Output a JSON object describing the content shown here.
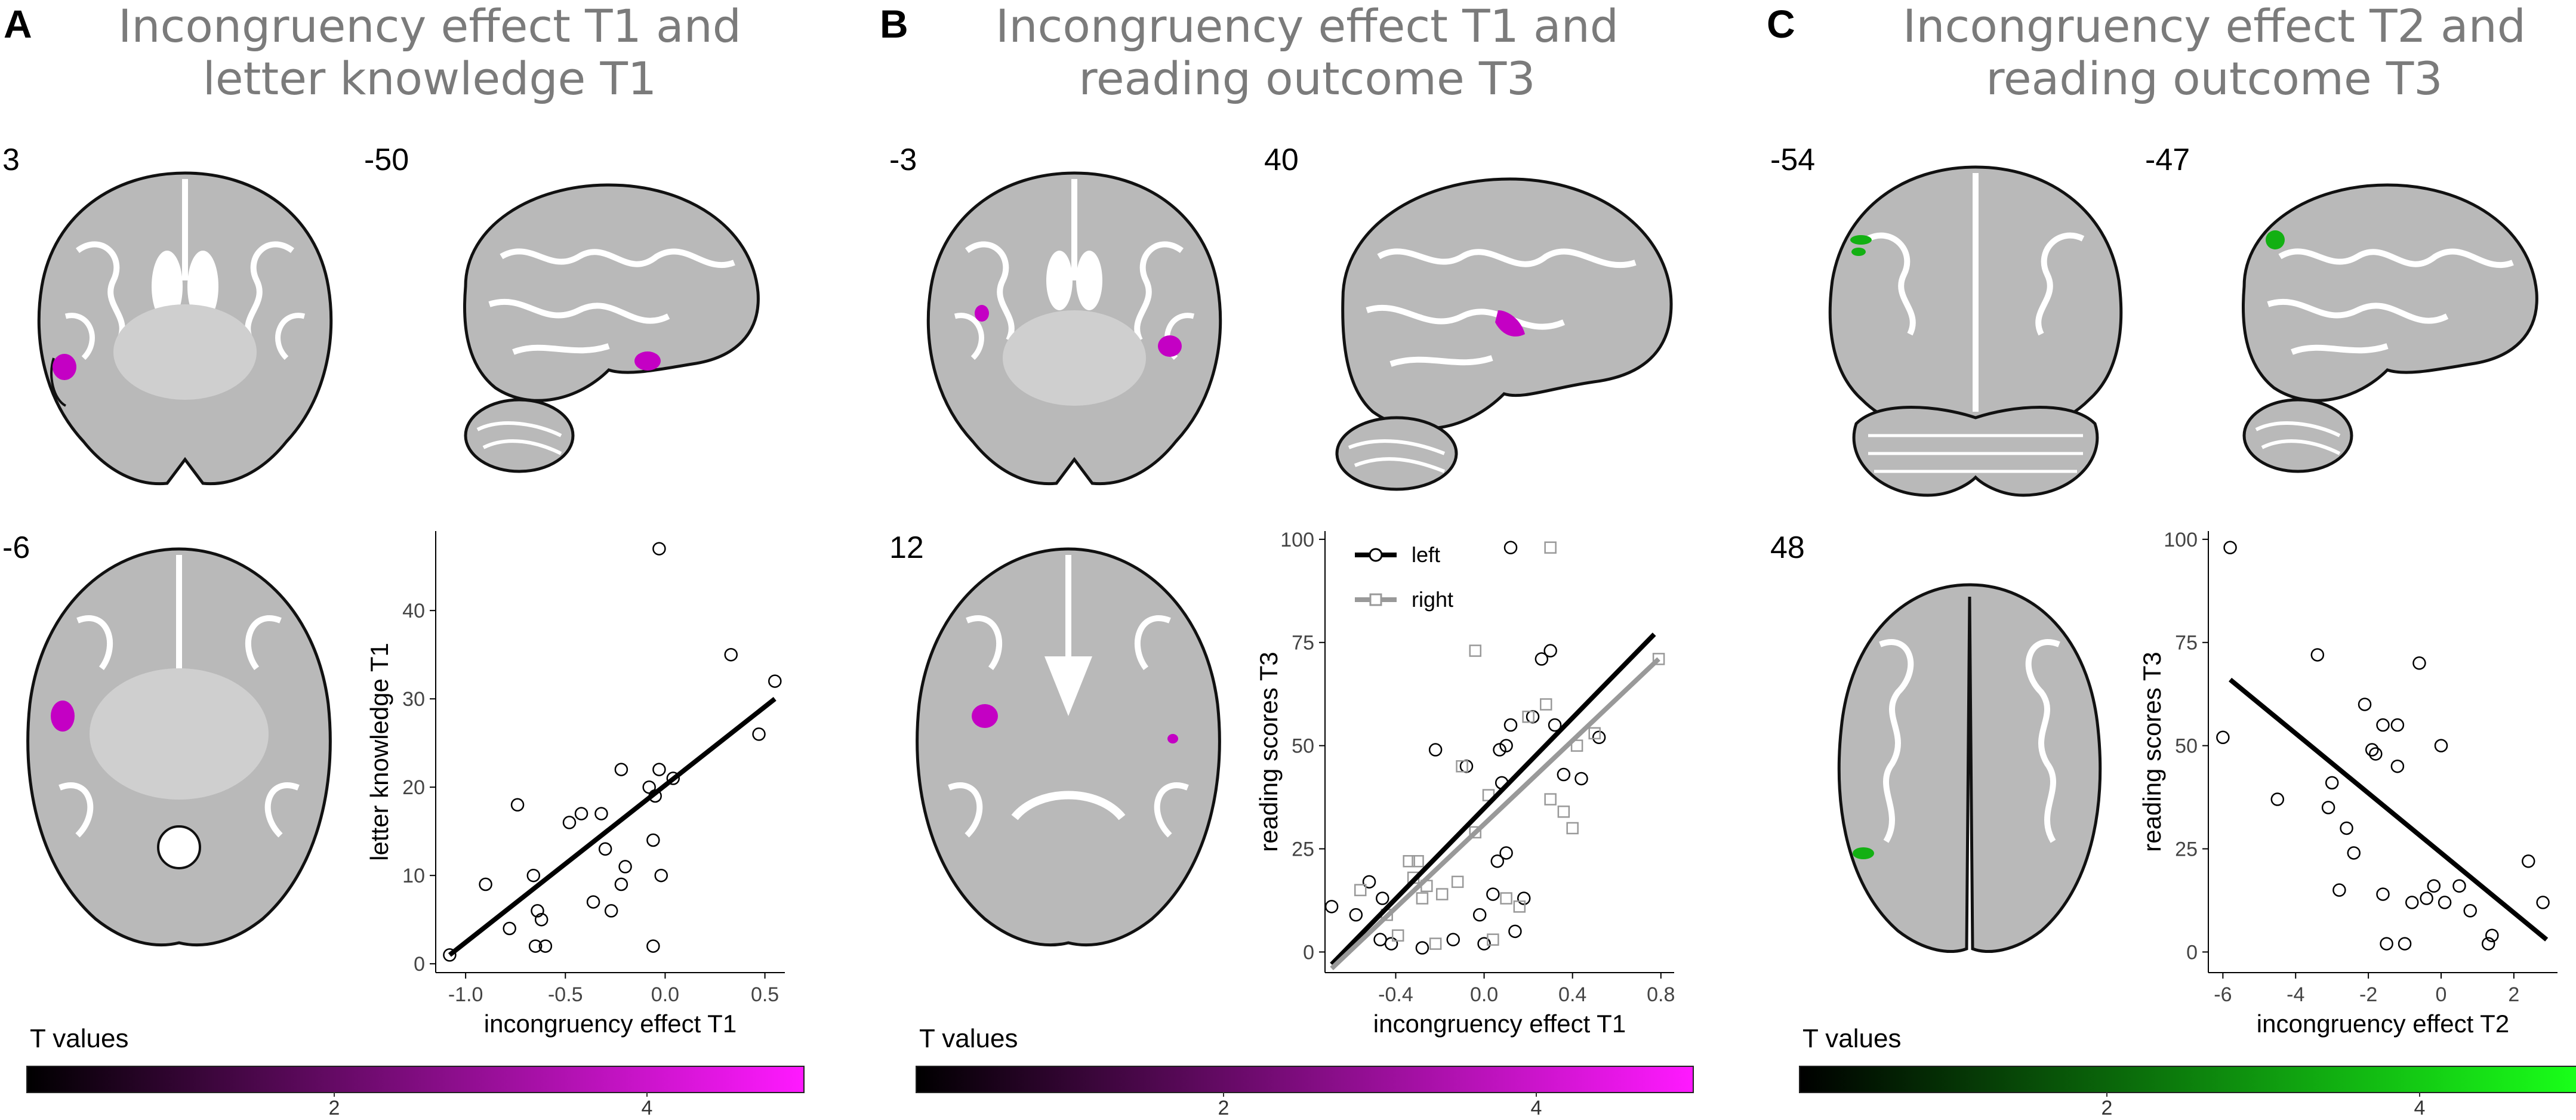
{
  "panels": [
    {
      "letter": "A",
      "title_line1": "Incongruency effect T1 and",
      "title_line2": "letter knowledge T1",
      "slices": [
        "3",
        "-50",
        "-6"
      ],
      "colorbar_label": "T values",
      "colorbar_ticks": [
        "2",
        "4"
      ],
      "colormap_end": "#ff19ff"
    },
    {
      "letter": "B",
      "title_line1": "Incongruency effect T1 and",
      "title_line2": "reading outcome T3",
      "slices": [
        "-3",
        "40",
        "12"
      ],
      "colorbar_label": "T values",
      "colorbar_ticks": [
        "2",
        "4"
      ],
      "colormap_end": "#ff19ff"
    },
    {
      "letter": "C",
      "title_line1": "Incongruency effect T2 and",
      "title_line2": "reading outcome T3",
      "slices": [
        "-54",
        "-47",
        "48"
      ],
      "colorbar_label": "T values",
      "colorbar_ticks": [
        "2",
        "4"
      ],
      "colormap_end": "#19ff19"
    }
  ],
  "chart_data": [
    {
      "type": "scatter",
      "xlabel": "incongruency effect T1",
      "ylabel": "letter knowledge T1",
      "xlim": [
        -1.15,
        0.6
      ],
      "ylim": [
        -1,
        49
      ],
      "xticks": [
        -1.0,
        -0.5,
        0.0,
        0.5
      ],
      "xtick_labels": [
        "-1.0",
        "-0.5",
        "0.0",
        "0.5"
      ],
      "yticks": [
        0,
        10,
        20,
        30,
        40
      ],
      "ytick_labels": [
        "0",
        "10",
        "20",
        "30",
        "40"
      ],
      "series": [
        {
          "marker": "circle",
          "color": "#000000",
          "points": [
            [
              -1.08,
              1
            ],
            [
              -0.9,
              9
            ],
            [
              -0.78,
              4
            ],
            [
              -0.74,
              18
            ],
            [
              -0.66,
              10
            ],
            [
              -0.64,
              6
            ],
            [
              -0.62,
              5
            ],
            [
              -0.65,
              2
            ],
            [
              -0.6,
              2
            ],
            [
              -0.48,
              16
            ],
            [
              -0.42,
              17
            ],
            [
              -0.36,
              7
            ],
            [
              -0.32,
              17
            ],
            [
              -0.3,
              13
            ],
            [
              -0.27,
              6
            ],
            [
              -0.22,
              22
            ],
            [
              -0.2,
              11
            ],
            [
              -0.22,
              9
            ],
            [
              -0.08,
              20
            ],
            [
              -0.05,
              19
            ],
            [
              -0.06,
              14
            ],
            [
              -0.03,
              22
            ],
            [
              -0.02,
              10
            ],
            [
              -0.06,
              2
            ],
            [
              0.04,
              21
            ],
            [
              -0.03,
              47
            ],
            [
              0.33,
              35
            ],
            [
              0.47,
              26
            ],
            [
              0.55,
              32
            ]
          ],
          "fit": [
            [
              -1.08,
              1
            ],
            [
              0.55,
              30
            ]
          ]
        }
      ]
    },
    {
      "type": "scatter",
      "xlabel": "incongruency effect T1",
      "ylabel": "reading scores T3",
      "xlim": [
        -0.72,
        0.86
      ],
      "ylim": [
        -5,
        102
      ],
      "xticks": [
        -0.4,
        0.0,
        0.4,
        0.8
      ],
      "xtick_labels": [
        "-0.4",
        "0.0",
        "0.4",
        "0.8"
      ],
      "yticks": [
        0,
        25,
        50,
        75,
        100
      ],
      "ytick_labels": [
        "0",
        "25",
        "50",
        "75",
        "100"
      ],
      "legend_position": "top-left",
      "series": [
        {
          "name": "left",
          "marker": "circle",
          "color": "#000000",
          "points": [
            [
              -0.69,
              11
            ],
            [
              -0.58,
              9
            ],
            [
              -0.52,
              17
            ],
            [
              -0.46,
              13
            ],
            [
              -0.47,
              3
            ],
            [
              -0.42,
              2
            ],
            [
              -0.28,
              1
            ],
            [
              -0.22,
              49
            ],
            [
              -0.14,
              3
            ],
            [
              -0.08,
              45
            ],
            [
              -0.02,
              9
            ],
            [
              0.0,
              2
            ],
            [
              0.04,
              14
            ],
            [
              0.06,
              22
            ],
            [
              0.07,
              49
            ],
            [
              0.1,
              50
            ],
            [
              0.1,
              24
            ],
            [
              0.12,
              55
            ],
            [
              0.14,
              5
            ],
            [
              0.18,
              13
            ],
            [
              0.22,
              57
            ],
            [
              0.26,
              71
            ],
            [
              0.3,
              73
            ],
            [
              0.32,
              55
            ],
            [
              0.36,
              43
            ],
            [
              0.44,
              42
            ],
            [
              0.52,
              52
            ],
            [
              0.12,
              98
            ],
            [
              0.08,
              41
            ]
          ],
          "fit": [
            [
              -0.69,
              -3
            ],
            [
              0.77,
              77
            ]
          ]
        },
        {
          "name": "right",
          "marker": "square",
          "color": "#999999",
          "points": [
            [
              -0.56,
              15
            ],
            [
              -0.44,
              9
            ],
            [
              -0.39,
              4
            ],
            [
              -0.34,
              22
            ],
            [
              -0.32,
              18
            ],
            [
              -0.3,
              22
            ],
            [
              -0.28,
              13
            ],
            [
              -0.26,
              16
            ],
            [
              -0.22,
              2
            ],
            [
              -0.19,
              14
            ],
            [
              -0.12,
              17
            ],
            [
              -0.1,
              45
            ],
            [
              -0.04,
              29
            ],
            [
              0.02,
              38
            ],
            [
              0.04,
              3
            ],
            [
              -0.04,
              73
            ],
            [
              0.1,
              13
            ],
            [
              0.16,
              11
            ],
            [
              0.28,
              60
            ],
            [
              0.3,
              37
            ],
            [
              0.36,
              34
            ],
            [
              0.4,
              30
            ],
            [
              0.42,
              50
            ],
            [
              0.5,
              53
            ],
            [
              0.3,
              98
            ],
            [
              0.2,
              57
            ],
            [
              0.79,
              71
            ]
          ],
          "fit": [
            [
              -0.69,
              -4
            ],
            [
              0.79,
              71
            ]
          ]
        }
      ]
    },
    {
      "type": "scatter",
      "xlabel": "incongruency effect T2",
      "ylabel": "reading scores T3",
      "xlim": [
        -6.4,
        3.2
      ],
      "ylim": [
        -5,
        102
      ],
      "xticks": [
        -6,
        -4,
        -2,
        0,
        2
      ],
      "xtick_labels": [
        "-6",
        "-4",
        "-2",
        "0",
        "2"
      ],
      "yticks": [
        0,
        25,
        50,
        75,
        100
      ],
      "ytick_labels": [
        "0",
        "25",
        "50",
        "75",
        "100"
      ],
      "series": [
        {
          "marker": "circle",
          "color": "#000000",
          "points": [
            [
              -5.8,
              98
            ],
            [
              -6.0,
              52
            ],
            [
              -4.5,
              37
            ],
            [
              -3.4,
              72
            ],
            [
              -3.0,
              41
            ],
            [
              -3.1,
              35
            ],
            [
              -2.8,
              15
            ],
            [
              -2.6,
              30
            ],
            [
              -2.4,
              24
            ],
            [
              -2.1,
              60
            ],
            [
              -1.9,
              49
            ],
            [
              -1.8,
              48
            ],
            [
              -1.6,
              55
            ],
            [
              -1.6,
              14
            ],
            [
              -1.5,
              2
            ],
            [
              -1.2,
              55
            ],
            [
              -1.2,
              45
            ],
            [
              -1.0,
              2
            ],
            [
              -0.8,
              12
            ],
            [
              -0.6,
              70
            ],
            [
              -0.4,
              13
            ],
            [
              -0.2,
              16
            ],
            [
              0.0,
              50
            ],
            [
              0.1,
              12
            ],
            [
              0.5,
              16
            ],
            [
              0.8,
              10
            ],
            [
              1.4,
              4
            ],
            [
              1.3,
              2
            ],
            [
              2.4,
              22
            ],
            [
              2.8,
              12
            ]
          ],
          "fit": [
            [
              -5.8,
              66
            ],
            [
              2.9,
              3
            ]
          ]
        }
      ]
    }
  ]
}
